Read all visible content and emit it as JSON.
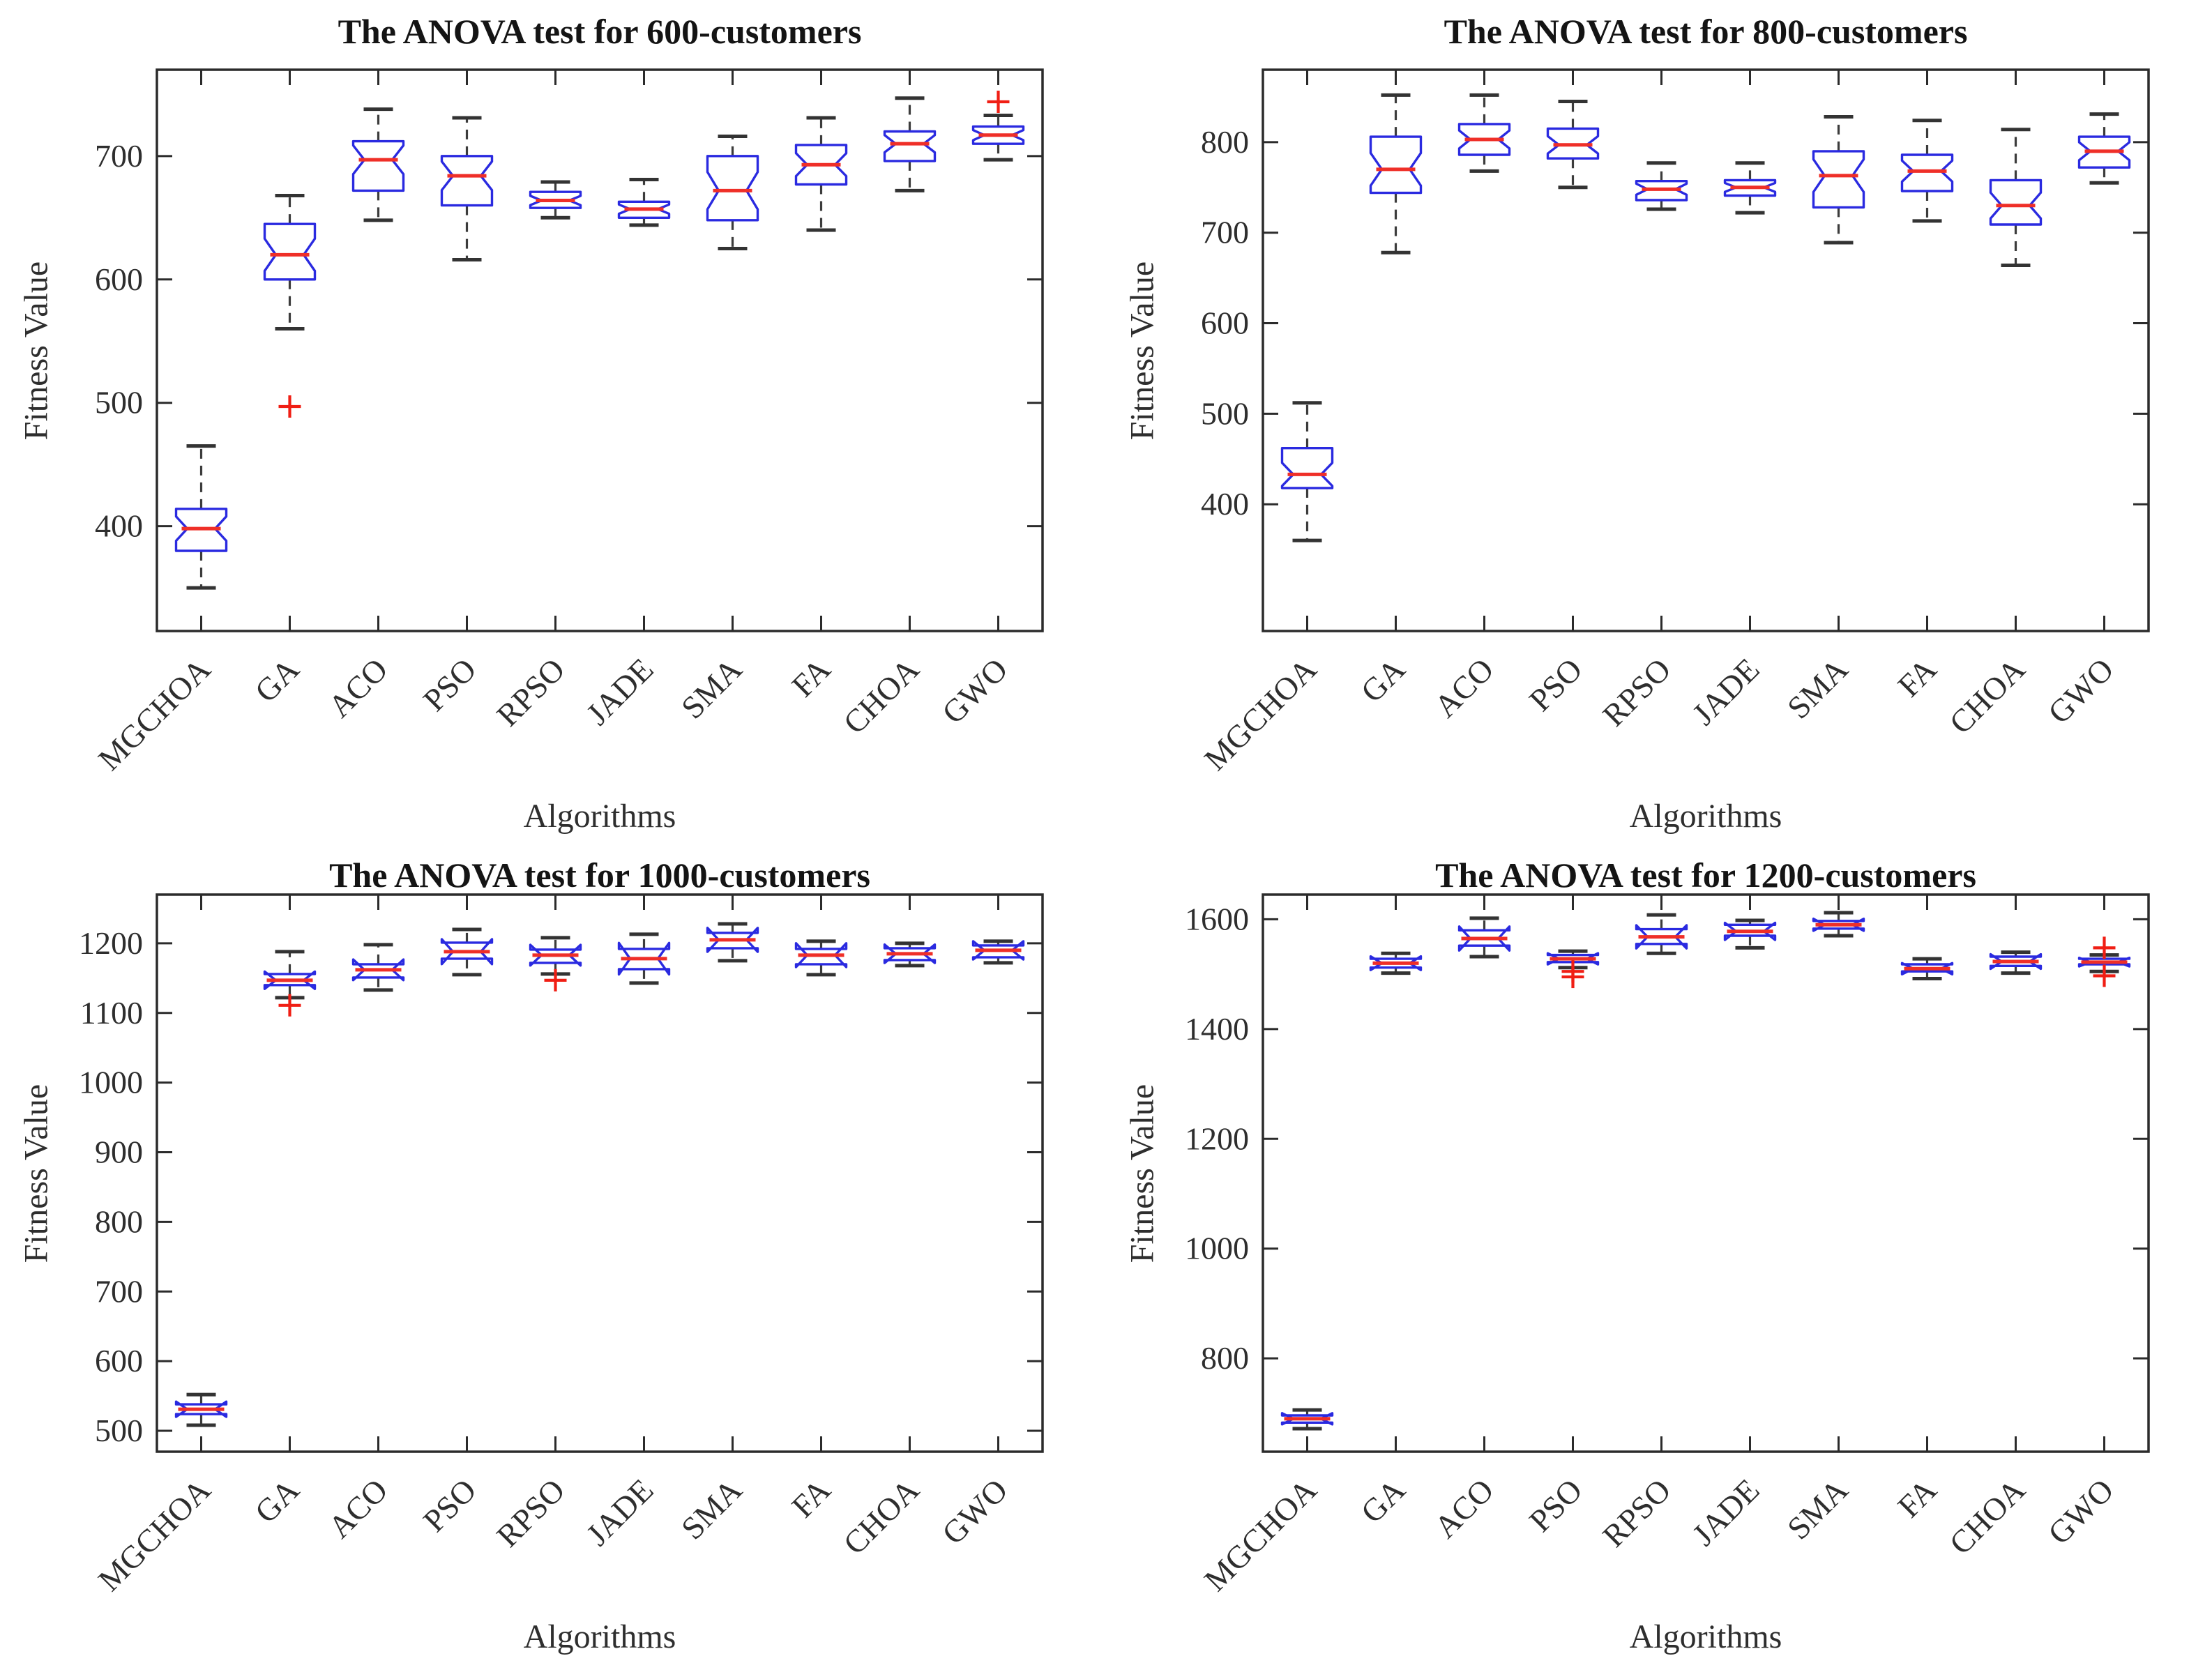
{
  "figure": {
    "background": "#ffffff",
    "shared_xlabel": "Algorithms",
    "shared_ylabel": "Fitness Value"
  },
  "styles": {
    "box_color": "#2a2ae0",
    "median_color": "#ef2f28",
    "whisker_color": "#3c3c3c",
    "cap_color": "#333333",
    "outlier_color": "#f01e14",
    "frame_color": "#2b2b2b",
    "tick_text_color": "#333333",
    "title_color": "#141414"
  },
  "chart_data": [
    {
      "type": "boxplot",
      "title": "The ANOVA test for 600-customers",
      "xlabel": "Algorithms",
      "ylabel": "Fitness Value",
      "ylim": [
        315,
        770
      ],
      "yticks": [
        400,
        500,
        600,
        700
      ],
      "grid": false,
      "categories": [
        "MGCHOA",
        "GA",
        "ACO",
        "PSO",
        "RPSO",
        "JADE",
        "SMA",
        "FA",
        "CHOA",
        "GWO"
      ],
      "series": [
        {
          "name": "MGCHOA",
          "whislo": 350,
          "q1": 380,
          "med": 398,
          "q3": 414,
          "whishi": 465,
          "outliers": []
        },
        {
          "name": "GA",
          "whislo": 560,
          "q1": 600,
          "med": 620,
          "q3": 645,
          "whishi": 668,
          "outliers": [
            497
          ]
        },
        {
          "name": "ACO",
          "whislo": 648,
          "q1": 672,
          "med": 697,
          "q3": 712,
          "whishi": 738,
          "outliers": []
        },
        {
          "name": "PSO",
          "whislo": 616,
          "q1": 660,
          "med": 684,
          "q3": 700,
          "whishi": 731,
          "outliers": []
        },
        {
          "name": "RPSO",
          "whislo": 650,
          "q1": 658,
          "med": 664,
          "q3": 671,
          "whishi": 679,
          "outliers": []
        },
        {
          "name": "JADE",
          "whislo": 644,
          "q1": 650,
          "med": 657,
          "q3": 663,
          "whishi": 681,
          "outliers": []
        },
        {
          "name": "SMA",
          "whislo": 625,
          "q1": 648,
          "med": 672,
          "q3": 700,
          "whishi": 716,
          "outliers": []
        },
        {
          "name": "FA",
          "whislo": 640,
          "q1": 677,
          "med": 693,
          "q3": 709,
          "whishi": 731,
          "outliers": []
        },
        {
          "name": "CHOA",
          "whislo": 672,
          "q1": 696,
          "med": 710,
          "q3": 720,
          "whishi": 747,
          "outliers": []
        },
        {
          "name": "GWO",
          "whislo": 697,
          "q1": 710,
          "med": 717,
          "q3": 724,
          "whishi": 733,
          "outliers": [
            744
          ]
        }
      ]
    },
    {
      "type": "boxplot",
      "title": "The ANOVA test for 800-customers",
      "xlabel": "Algorithms",
      "ylabel": "Fitness Value",
      "ylim": [
        260,
        880
      ],
      "yticks": [
        400,
        500,
        600,
        700,
        800
      ],
      "grid": false,
      "categories": [
        "MGCHOA",
        "GA",
        "ACO",
        "PSO",
        "RPSO",
        "JADE",
        "SMA",
        "FA",
        "CHOA",
        "GWO"
      ],
      "series": [
        {
          "name": "MGCHOA",
          "whislo": 360,
          "q1": 418,
          "med": 433,
          "q3": 462,
          "whishi": 512,
          "outliers": []
        },
        {
          "name": "GA",
          "whislo": 678,
          "q1": 744,
          "med": 770,
          "q3": 806,
          "whishi": 852,
          "outliers": []
        },
        {
          "name": "ACO",
          "whislo": 768,
          "q1": 786,
          "med": 803,
          "q3": 820,
          "whishi": 852,
          "outliers": []
        },
        {
          "name": "PSO",
          "whislo": 750,
          "q1": 782,
          "med": 797,
          "q3": 815,
          "whishi": 845,
          "outliers": []
        },
        {
          "name": "RPSO",
          "whislo": 726,
          "q1": 736,
          "med": 748,
          "q3": 757,
          "whishi": 777,
          "outliers": []
        },
        {
          "name": "JADE",
          "whislo": 722,
          "q1": 741,
          "med": 750,
          "q3": 758,
          "whishi": 777,
          "outliers": []
        },
        {
          "name": "SMA",
          "whislo": 689,
          "q1": 728,
          "med": 763,
          "q3": 790,
          "whishi": 828,
          "outliers": []
        },
        {
          "name": "FA",
          "whislo": 713,
          "q1": 746,
          "med": 768,
          "q3": 786,
          "whishi": 824,
          "outliers": []
        },
        {
          "name": "CHOA",
          "whislo": 664,
          "q1": 709,
          "med": 730,
          "q3": 758,
          "whishi": 814,
          "outliers": []
        },
        {
          "name": "GWO",
          "whislo": 755,
          "q1": 772,
          "med": 790,
          "q3": 806,
          "whishi": 831,
          "outliers": []
        }
      ]
    },
    {
      "type": "boxplot",
      "title": "The ANOVA test for 1000-customers",
      "xlabel": "Algorithms",
      "ylabel": "Fitness Value",
      "ylim": [
        470,
        1270
      ],
      "yticks": [
        500,
        600,
        700,
        800,
        900,
        1000,
        1100,
        1200
      ],
      "grid": false,
      "categories": [
        "MGCHOA",
        "GA",
        "ACO",
        "PSO",
        "RPSO",
        "JADE",
        "SMA",
        "FA",
        "CHOA",
        "GWO"
      ],
      "series": [
        {
          "name": "MGCHOA",
          "whislo": 508,
          "q1": 524,
          "med": 531,
          "q3": 538,
          "whishi": 552,
          "outliers": []
        },
        {
          "name": "GA",
          "whislo": 1122,
          "q1": 1140,
          "med": 1147,
          "q3": 1156,
          "whishi": 1188,
          "outliers": [
            1111
          ]
        },
        {
          "name": "ACO",
          "whislo": 1133,
          "q1": 1151,
          "med": 1162,
          "q3": 1170,
          "whishi": 1198,
          "outliers": []
        },
        {
          "name": "PSO",
          "whislo": 1155,
          "q1": 1178,
          "med": 1188,
          "q3": 1201,
          "whishi": 1220,
          "outliers": []
        },
        {
          "name": "RPSO",
          "whislo": 1156,
          "q1": 1172,
          "med": 1183,
          "q3": 1191,
          "whishi": 1208,
          "outliers": [
            1147
          ]
        },
        {
          "name": "JADE",
          "whislo": 1143,
          "q1": 1163,
          "med": 1178,
          "q3": 1192,
          "whishi": 1213,
          "outliers": []
        },
        {
          "name": "SMA",
          "whislo": 1175,
          "q1": 1193,
          "med": 1205,
          "q3": 1215,
          "whishi": 1228,
          "outliers": []
        },
        {
          "name": "FA",
          "whislo": 1155,
          "q1": 1170,
          "med": 1183,
          "q3": 1192,
          "whishi": 1203,
          "outliers": []
        },
        {
          "name": "CHOA",
          "whislo": 1168,
          "q1": 1176,
          "med": 1185,
          "q3": 1193,
          "whishi": 1200,
          "outliers": []
        },
        {
          "name": "GWO",
          "whislo": 1172,
          "q1": 1180,
          "med": 1190,
          "q3": 1197,
          "whishi": 1203,
          "outliers": []
        }
      ]
    },
    {
      "type": "boxplot",
      "title": "The ANOVA test for 1200-customers",
      "xlabel": "Algorithms",
      "ylabel": "Fitness Value",
      "ylim": [
        630,
        1645
      ],
      "yticks": [
        800,
        1000,
        1200,
        1400,
        1600
      ],
      "grid": false,
      "categories": [
        "MGCHOA",
        "GA",
        "ACO",
        "PSO",
        "RPSO",
        "JADE",
        "SMA",
        "FA",
        "CHOA",
        "GWO"
      ],
      "series": [
        {
          "name": "MGCHOA",
          "whislo": 672,
          "q1": 683,
          "med": 690,
          "q3": 696,
          "whishi": 706,
          "outliers": []
        },
        {
          "name": "GA",
          "whislo": 1502,
          "q1": 1512,
          "med": 1520,
          "q3": 1528,
          "whishi": 1538,
          "outliers": []
        },
        {
          "name": "ACO",
          "whislo": 1532,
          "q1": 1552,
          "med": 1565,
          "q3": 1580,
          "whishi": 1602,
          "outliers": []
        },
        {
          "name": "PSO",
          "whislo": 1512,
          "q1": 1522,
          "med": 1528,
          "q3": 1535,
          "whishi": 1542,
          "outliers": [
            1505,
            1495
          ]
        },
        {
          "name": "RPSO",
          "whislo": 1538,
          "q1": 1555,
          "med": 1568,
          "q3": 1582,
          "whishi": 1608,
          "outliers": []
        },
        {
          "name": "JADE",
          "whislo": 1548,
          "q1": 1570,
          "med": 1578,
          "q3": 1590,
          "whishi": 1598,
          "outliers": []
        },
        {
          "name": "SMA",
          "whislo": 1570,
          "q1": 1583,
          "med": 1590,
          "q3": 1597,
          "whishi": 1612,
          "outliers": []
        },
        {
          "name": "FA",
          "whislo": 1492,
          "q1": 1505,
          "med": 1510,
          "q3": 1518,
          "whishi": 1528,
          "outliers": []
        },
        {
          "name": "CHOA",
          "whislo": 1502,
          "q1": 1515,
          "med": 1523,
          "q3": 1532,
          "whishi": 1540,
          "outliers": []
        },
        {
          "name": "GWO",
          "whislo": 1505,
          "q1": 1518,
          "med": 1522,
          "q3": 1528,
          "whishi": 1535,
          "outliers": [
            1548,
            1497
          ]
        }
      ]
    }
  ]
}
